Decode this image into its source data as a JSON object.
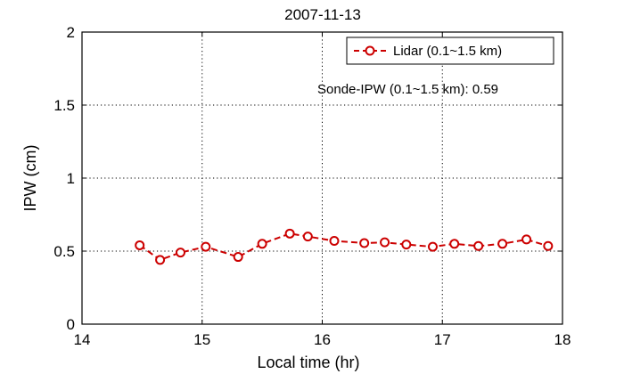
{
  "chart_data": {
    "type": "line",
    "title": "2007-11-13",
    "xlabel": "Local time (hr)",
    "ylabel": "IPW (cm)",
    "xlim": [
      14,
      18
    ],
    "ylim": [
      0,
      2
    ],
    "xticks": [
      14,
      15,
      16,
      17,
      18
    ],
    "yticks": [
      0,
      0.5,
      1,
      1.5,
      2
    ],
    "xtick_labels": [
      "14",
      "15",
      "16",
      "17",
      "18"
    ],
    "ytick_labels": [
      "0",
      "0.5",
      "1",
      "1.5",
      "2"
    ],
    "grid": true,
    "legend": {
      "placement": "top-right",
      "entries": [
        "Lidar (0.1~1.5 km)"
      ]
    },
    "annotation": "Sonde-IPW (0.1~1.5 km): 0.59",
    "series": [
      {
        "name": "Lidar (0.1~1.5 km)",
        "color": "#cc0000",
        "line_style": "dashed",
        "marker": "open-circle",
        "x": [
          14.48,
          14.65,
          14.82,
          15.03,
          15.3,
          15.5,
          15.73,
          15.88,
          16.1,
          16.35,
          16.52,
          16.7,
          16.92,
          17.1,
          17.3,
          17.5,
          17.7,
          17.88
        ],
        "y": [
          0.54,
          0.44,
          0.49,
          0.53,
          0.46,
          0.55,
          0.62,
          0.6,
          0.57,
          0.555,
          0.56,
          0.545,
          0.53,
          0.55,
          0.535,
          0.55,
          0.58,
          0.535
        ]
      }
    ]
  }
}
